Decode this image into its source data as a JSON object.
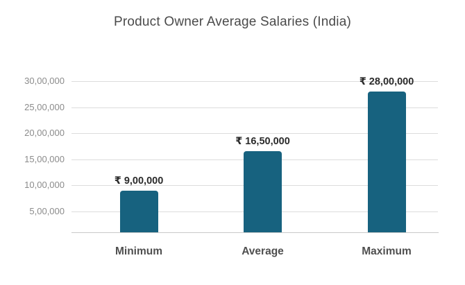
{
  "title": "Product Owner Average Salaries (India)",
  "colors": {
    "bar": "#17627f",
    "title_text": "#4a4a4a",
    "tick_text": "#8b8b8b",
    "value_label_text": "#2b2b2b",
    "category_text": "#4f4f4f",
    "gridline": "#dcdcdc",
    "baseline": "#c8c8c8",
    "background": "#ffffff"
  },
  "chart_data": {
    "type": "bar",
    "title": "Product Owner Average Salaries (India)",
    "categories": [
      "Minimum",
      "Average",
      "Maximum"
    ],
    "values": [
      900000,
      1650000,
      2800000
    ],
    "value_labels": [
      "₹ 9,00,000",
      "₹ 16,50,000",
      "₹ 28,00,000"
    ],
    "currency_symbol": "₹",
    "y_ticks": [
      500000,
      1000000,
      1500000,
      2000000,
      2500000,
      3000000
    ],
    "y_tick_labels": [
      "5,00,000",
      "10,00,000",
      "15,00,000",
      "20,00,000",
      "25,00,000",
      "30,00,000"
    ],
    "ylim": [
      0,
      3000000
    ],
    "xlabel": "",
    "ylabel": "",
    "grid": true,
    "legend": false,
    "bar_color": "#17627f"
  }
}
